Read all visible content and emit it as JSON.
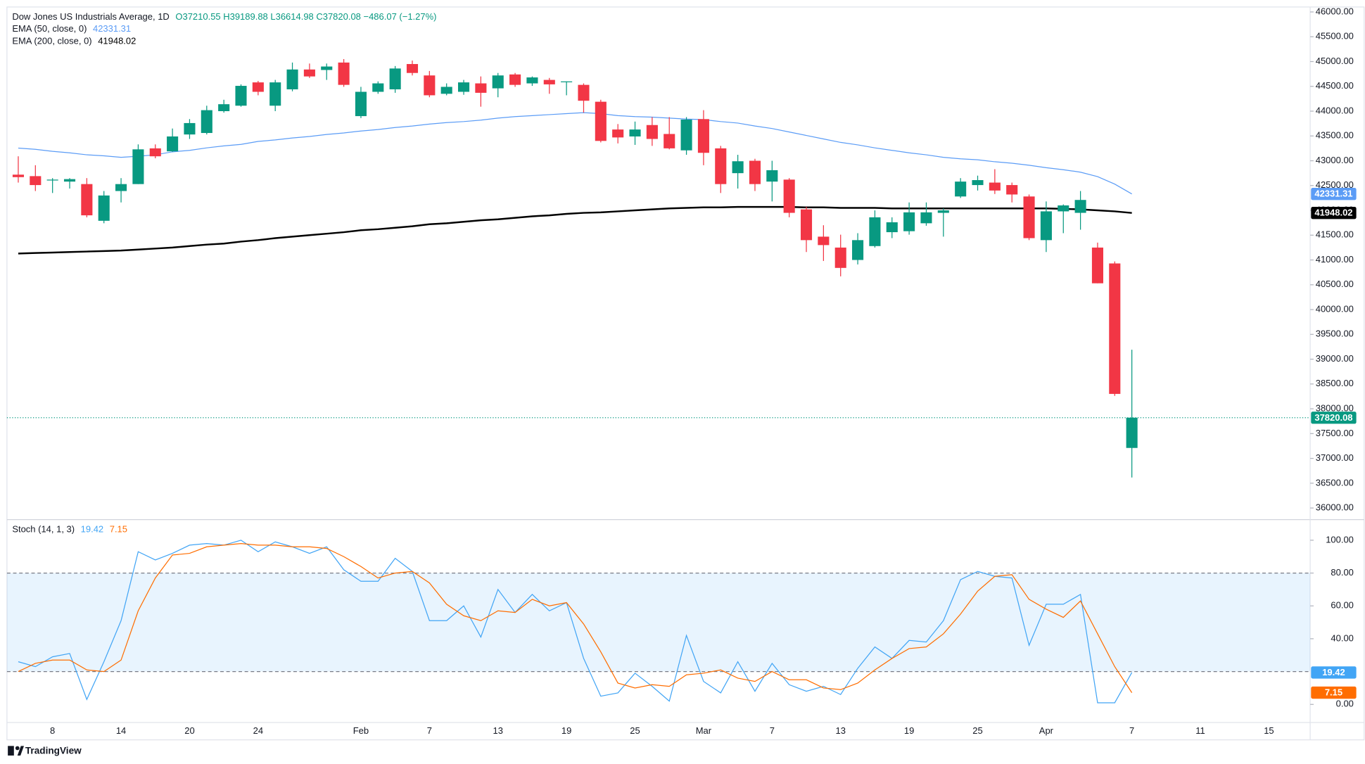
{
  "brand": "TradingView",
  "chart_data": [
    {
      "type": "candlestick",
      "title": "Dow Jones US Industrials Average, 1D",
      "ohlc_text": "O37210.55 H39189.88 L36614.98 C37820.08 −486.07 (−1.27%)",
      "up_color": "#089981",
      "down_color": "#f23645",
      "categories": [
        null,
        null,
        "8",
        null,
        null,
        null,
        "14",
        null,
        null,
        null,
        "20",
        null,
        null,
        null,
        "24",
        null,
        null,
        null,
        null,
        null,
        "Feb",
        null,
        null,
        null,
        "7",
        null,
        null,
        null,
        "13",
        null,
        null,
        null,
        "19",
        null,
        null,
        null,
        "25",
        null,
        null,
        null,
        "Mar",
        null,
        null,
        null,
        "7",
        null,
        null,
        null,
        "13",
        null,
        null,
        null,
        "19",
        null,
        null,
        null,
        "25",
        null,
        null,
        null,
        "Apr",
        null,
        null,
        null,
        null,
        "7",
        null,
        null,
        null,
        "11",
        null,
        null,
        null,
        "15",
        null
      ],
      "open": [
        42720,
        42690,
        42610,
        42580,
        42530,
        41790,
        42390,
        42530,
        43250,
        43190,
        43530,
        43560,
        44000,
        44110,
        44580,
        44110,
        44440,
        44840,
        44830,
        44980,
        43900,
        44390,
        44440,
        44950,
        44720,
        44350,
        44390,
        44560,
        44460,
        44740,
        44560,
        44630,
        44590,
        44530,
        44190,
        43630,
        43490,
        43720,
        43540,
        43210,
        43840,
        43250,
        42750,
        43000,
        42580,
        42620,
        42020,
        41470,
        41250,
        41000,
        41280,
        41560,
        41580,
        41740,
        41950,
        42280,
        42510,
        42560,
        42510,
        42280,
        41400,
        41980,
        41950,
        41250,
        40930,
        37210.55,
        null,
        null,
        null,
        null,
        null,
        null,
        null,
        null,
        null
      ],
      "high": [
        43090,
        42910,
        42650,
        42650,
        42650,
        42390,
        42650,
        43330,
        43330,
        43650,
        43840,
        44110,
        44230,
        44540,
        44610,
        44630,
        44980,
        44960,
        44960,
        45050,
        44490,
        44600,
        44910,
        45020,
        44810,
        44560,
        44630,
        44700,
        44770,
        44770,
        44700,
        44670,
        44600,
        44560,
        44230,
        43740,
        43790,
        43880,
        43880,
        43880,
        44020,
        43300,
        43120,
        43040,
        43000,
        42650,
        42070,
        41700,
        41510,
        41540,
        42000,
        41860,
        42160,
        42160,
        42040,
        42650,
        42700,
        42830,
        42560,
        42320,
        42180,
        42120,
        42390,
        41350,
        40970,
        39189.88,
        null,
        null,
        null,
        null,
        null,
        null,
        null,
        null,
        null
      ],
      "low": [
        42560,
        42390,
        42350,
        42440,
        41860,
        41740,
        42160,
        42530,
        43050,
        43180,
        43440,
        43530,
        43970,
        44090,
        44320,
        44000,
        44400,
        44670,
        44630,
        44490,
        43860,
        44350,
        44370,
        44720,
        44280,
        44320,
        44330,
        44090,
        44280,
        44490,
        44510,
        44350,
        44320,
        43970,
        43370,
        43350,
        43320,
        43300,
        43230,
        43120,
        42910,
        42350,
        42440,
        42390,
        42180,
        41860,
        41160,
        40980,
        40670,
        40910,
        41250,
        41440,
        41510,
        41690,
        41470,
        42250,
        42400,
        42330,
        42160,
        41400,
        41160,
        41540,
        41610,
        40530,
        38260,
        36614.98,
        null,
        null,
        null,
        null,
        null,
        null,
        null,
        null,
        null
      ],
      "close": [
        42670,
        42510,
        42620,
        42630,
        41900,
        42300,
        42530,
        43230,
        43090,
        43490,
        43760,
        44020,
        44140,
        44510,
        44390,
        44580,
        44840,
        44700,
        44900,
        44530,
        44390,
        44560,
        44860,
        44770,
        44320,
        44490,
        44580,
        44370,
        44720,
        44530,
        44680,
        44540,
        44600,
        44210,
        43400,
        43470,
        43630,
        43440,
        43250,
        43830,
        43160,
        42530,
        42990,
        42530,
        42810,
        41950,
        41400,
        41300,
        40840,
        41400,
        41860,
        41760,
        41960,
        41960,
        42000,
        42580,
        42610,
        42400,
        42320,
        41440,
        41980,
        42100,
        42210,
        40530,
        38300,
        37820.08,
        null,
        null,
        null,
        null,
        null,
        null,
        null,
        null,
        null
      ],
      "series": [
        {
          "name": "EMA (50, close, 0)",
          "color": "#5b9cf6",
          "line_width": 1,
          "values": [
            43255,
            43230,
            43190,
            43160,
            43120,
            43100,
            43070,
            43090,
            43120,
            43180,
            43210,
            43260,
            43300,
            43330,
            43390,
            43420,
            43460,
            43490,
            43530,
            43560,
            43600,
            43630,
            43670,
            43700,
            43740,
            43770,
            43790,
            43820,
            43860,
            43890,
            43910,
            43930,
            43950,
            43970,
            43950,
            43910,
            43890,
            43880,
            43860,
            43840,
            43830,
            43790,
            43760,
            43700,
            43650,
            43580,
            43510,
            43440,
            43370,
            43320,
            43260,
            43210,
            43160,
            43120,
            43070,
            43040,
            43020,
            42980,
            42950,
            42910,
            42860,
            42820,
            42770,
            42680,
            42530,
            42331.31,
            null,
            null,
            null,
            null,
            null,
            null,
            null,
            null,
            null
          ]
        },
        {
          "name": "EMA (200, close, 0)",
          "color": "#000000",
          "line_width": 2,
          "values": [
            41130,
            41140,
            41150,
            41160,
            41170,
            41180,
            41190,
            41210,
            41230,
            41250,
            41280,
            41310,
            41330,
            41370,
            41400,
            41440,
            41470,
            41500,
            41530,
            41560,
            41600,
            41620,
            41650,
            41680,
            41720,
            41740,
            41770,
            41800,
            41820,
            41850,
            41880,
            41900,
            41930,
            41950,
            41960,
            41980,
            42000,
            42020,
            42040,
            42050,
            42060,
            42060,
            42070,
            42070,
            42070,
            42070,
            42060,
            42060,
            42050,
            42050,
            42050,
            42040,
            42040,
            42040,
            42040,
            42040,
            42040,
            42040,
            42040,
            42040,
            42040,
            42030,
            42020,
            42000,
            41980,
            41948.02,
            null,
            null,
            null,
            null,
            null,
            null,
            null,
            null,
            null
          ]
        }
      ],
      "ylim": [
        35800,
        46100
      ],
      "yticks": [
        {
          "value": 36000,
          "label": "36000.00"
        },
        {
          "value": 36500,
          "label": "36500.00"
        },
        {
          "value": 37000,
          "label": "37000.00"
        },
        {
          "value": 37500,
          "label": "37500.00"
        },
        {
          "value": 38000,
          "label": "38000.00"
        },
        {
          "value": 38500,
          "label": "38500.00"
        },
        {
          "value": 39000,
          "label": "39000.00"
        },
        {
          "value": 39500,
          "label": "39500.00"
        },
        {
          "value": 40000,
          "label": "40000.00"
        },
        {
          "value": 40500,
          "label": "40500.00"
        },
        {
          "value": 41000,
          "label": "41000.00"
        },
        {
          "value": 41500,
          "label": "41500.00"
        },
        {
          "value": 42000,
          "label": "42000.00"
        },
        {
          "value": 42500,
          "label": "42500.00"
        },
        {
          "value": 43000,
          "label": "43000.00"
        },
        {
          "value": 43500,
          "label": "43500.00"
        },
        {
          "value": 44000,
          "label": "44000.00"
        },
        {
          "value": 44500,
          "label": "44500.00"
        },
        {
          "value": 45000,
          "label": "45000.00"
        },
        {
          "value": 45500,
          "label": "45500.00"
        },
        {
          "value": 46000,
          "label": "46000.00"
        }
      ]
    },
    {
      "type": "line",
      "title": "Stoch (14, 1, 3)",
      "series": [
        {
          "color": "#42a5f5",
          "line_width": 1,
          "values": [
            26,
            23,
            29,
            31,
            3,
            26,
            51,
            93,
            88,
            92,
            97,
            98,
            97,
            100,
            93,
            99,
            96,
            92,
            96,
            82,
            75,
            75,
            89,
            81,
            51,
            51,
            60,
            41,
            70,
            56,
            67,
            57,
            62,
            28,
            5,
            7,
            19,
            11,
            2,
            42,
            14,
            7,
            26,
            8,
            25,
            12,
            8,
            11,
            6,
            22,
            35,
            28,
            39,
            38,
            51,
            76,
            81,
            78,
            77,
            36,
            61,
            61,
            67,
            1,
            1,
            19.42,
            null,
            null,
            null,
            null,
            null,
            null,
            null,
            null,
            null
          ]
        },
        {
          "color": "#ff6d00",
          "line_width": 1,
          "values": [
            20,
            25,
            27,
            27,
            21,
            20,
            27,
            57,
            77,
            91,
            92,
            96,
            97,
            98,
            97,
            97,
            96,
            96,
            95,
            90,
            84,
            77,
            80,
            81,
            74,
            61,
            54,
            51,
            57,
            56,
            64,
            60,
            62,
            49,
            32,
            13,
            10,
            12,
            11,
            18,
            19,
            21,
            16,
            14,
            20,
            15,
            15,
            10,
            9,
            13,
            21,
            28,
            34,
            35,
            43,
            55,
            69,
            78,
            79,
            64,
            58,
            53,
            63,
            43,
            23,
            7.15,
            null,
            null,
            null,
            null,
            null,
            null,
            null,
            null,
            null
          ]
        }
      ],
      "bands": [
        20,
        80
      ],
      "band_color": "rgba(33,150,243,0.1)",
      "ylim": [
        -11,
        112
      ],
      "yticks": [
        {
          "value": 0,
          "label": "0.00"
        },
        {
          "value": 40,
          "label": "40.00"
        },
        {
          "value": 60,
          "label": "60.00"
        },
        {
          "value": 80,
          "label": "80.00"
        },
        {
          "value": 100,
          "label": "100.00"
        }
      ]
    }
  ]
}
